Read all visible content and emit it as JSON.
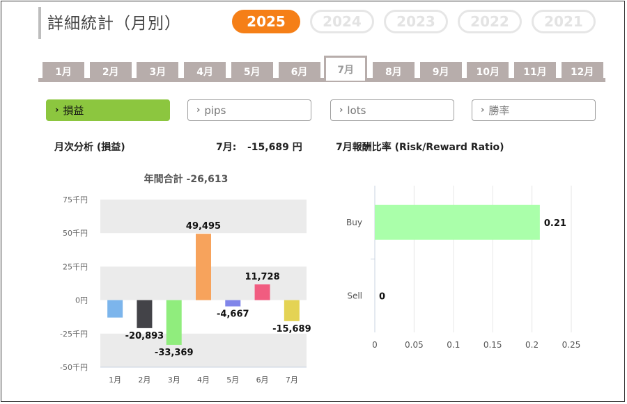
{
  "page_title": "詳細統計（月別）",
  "years": [
    {
      "label": "2025",
      "active": true
    },
    {
      "label": "2024",
      "active": false
    },
    {
      "label": "2023",
      "active": false
    },
    {
      "label": "2022",
      "active": false
    },
    {
      "label": "2021",
      "active": false
    }
  ],
  "months": [
    "1月",
    "2月",
    "3月",
    "4月",
    "5月",
    "6月",
    "7月",
    "8月",
    "9月",
    "10月",
    "11月",
    "12月"
  ],
  "active_month_index": 6,
  "filters": [
    {
      "label": "損益",
      "active": true
    },
    {
      "label": "pips",
      "active": false
    },
    {
      "label": "lots",
      "active": false
    },
    {
      "label": "勝率",
      "active": false
    }
  ],
  "monthly": {
    "heading": "月次分析 (損益)",
    "month_total_label": "7月:",
    "month_total_value": "-15,689 円",
    "annual_total": "年間合計 -26,613"
  },
  "rr": {
    "heading": "7月報酬比率 (Risk/Reward Ratio)"
  },
  "chart_data": [
    {
      "type": "bar",
      "title": "年間合計 -26,613",
      "categories": [
        "1月",
        "2月",
        "3月",
        "4月",
        "5月",
        "6月",
        "7月"
      ],
      "values": [
        -13000,
        -20893,
        -33369,
        49495,
        -4667,
        11728,
        -15689
      ],
      "data_labels": [
        "",
        "-20,893",
        "-33,369",
        "49,495",
        "-4,667",
        "11,728",
        "-15,689"
      ],
      "colors": [
        "#7cb5ec",
        "#434348",
        "#90ed7d",
        "#f7a35c",
        "#8085e9",
        "#f15c80",
        "#e4d354"
      ],
      "ylim": [
        -50000,
        75000
      ],
      "yticks": [
        75000,
        50000,
        25000,
        0,
        -25000,
        -50000
      ],
      "ytick_labels": [
        "75千円",
        "50千円",
        "25千円",
        "0円",
        "-25千円",
        "-50千円"
      ],
      "grid": "alternating bands"
    },
    {
      "type": "bar",
      "orientation": "horizontal",
      "categories": [
        "Buy",
        "Sell"
      ],
      "values": [
        0.21,
        0
      ],
      "data_labels": [
        "0.21",
        "0"
      ],
      "color": "#aaffaa",
      "xlim": [
        0,
        0.25
      ],
      "xticks": [
        0,
        0.05,
        0.1,
        0.15,
        0.2,
        0.25
      ],
      "xtick_labels": [
        "0",
        "0.05",
        "0.1",
        "0.15",
        "0.2",
        "0.25"
      ],
      "grid": true
    }
  ]
}
